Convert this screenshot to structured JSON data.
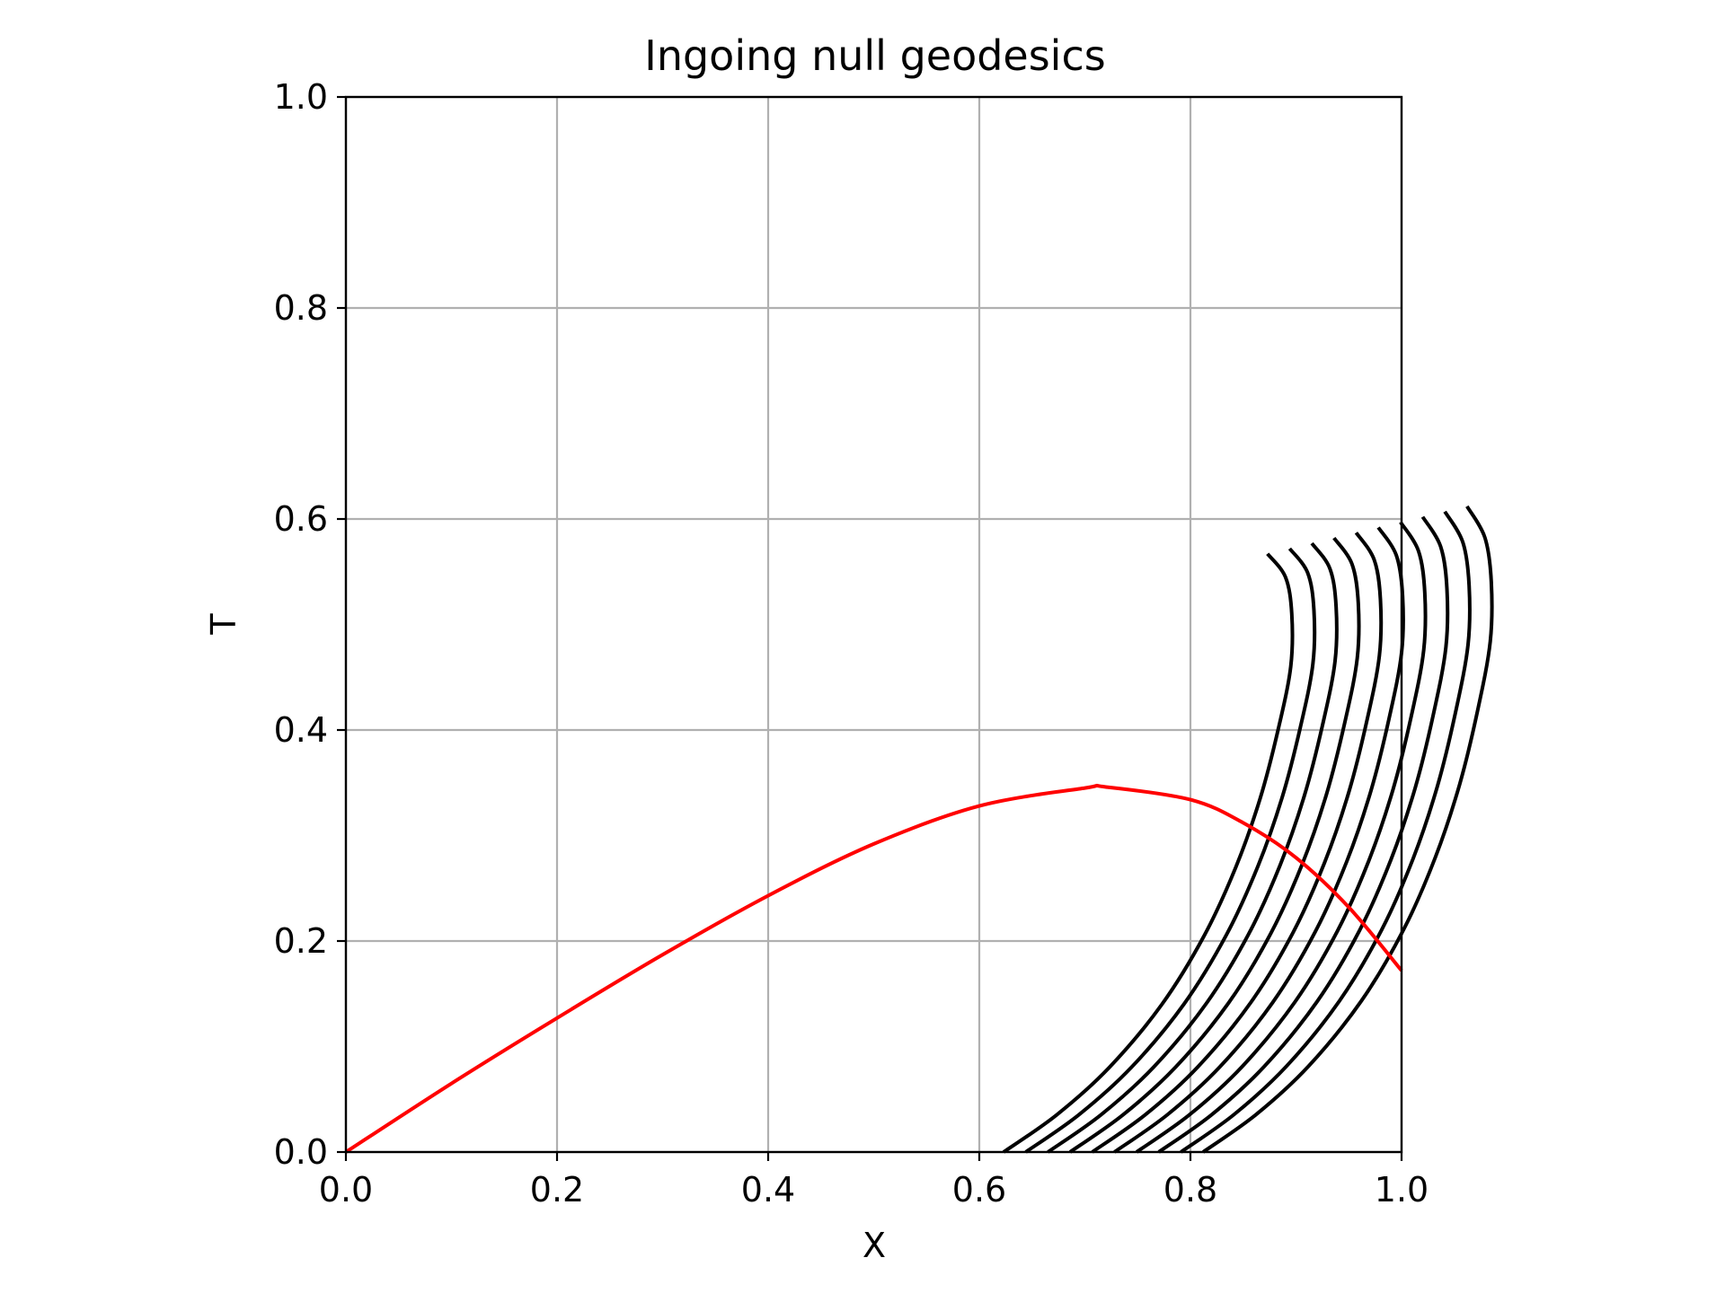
{
  "chart_data": {
    "type": "line",
    "title": "Ingoing null geodesics",
    "xlabel": "X",
    "ylabel": "T",
    "xlim": [
      0.0,
      1.0
    ],
    "ylim": [
      0.0,
      1.0
    ],
    "xticks": [
      "0.0",
      "0.2",
      "0.4",
      "0.6",
      "0.8",
      "1.0"
    ],
    "yticks": [
      "0.0",
      "0.2",
      "0.4",
      "0.6",
      "0.8",
      "1.0"
    ],
    "grid": true,
    "colors": {
      "geodesics": "#000000",
      "red_curve": "#ff0000",
      "grid": "#b0b0b0"
    },
    "geodesic_start_x": [
      0.623,
      0.644,
      0.665,
      0.686,
      0.707,
      0.728,
      0.749,
      0.77,
      0.791,
      0.812
    ],
    "geodesic_shape": [
      {
        "dx": 0.0,
        "t": 0.0
      },
      {
        "dx": 0.05,
        "t": 0.035
      },
      {
        "dx": 0.1,
        "t": 0.08
      },
      {
        "dx": 0.15,
        "t": 0.14
      },
      {
        "dx": 0.19,
        "t": 0.205
      },
      {
        "dx": 0.22,
        "t": 0.27
      },
      {
        "dx": 0.243,
        "t": 0.335
      },
      {
        "dx": 0.26,
        "t": 0.4
      },
      {
        "dx": 0.272,
        "t": 0.46
      },
      {
        "dx": 0.273,
        "t": 0.51
      },
      {
        "dx": 0.267,
        "t": 0.545
      },
      {
        "dx": 0.25,
        "t": 0.567
      }
    ],
    "geodesic_end_rise": 0.005,
    "red_curve": [
      {
        "x": 0.0,
        "y": 0.0
      },
      {
        "x": 0.1,
        "y": 0.065
      },
      {
        "x": 0.2,
        "y": 0.127
      },
      {
        "x": 0.3,
        "y": 0.187
      },
      {
        "x": 0.4,
        "y": 0.243
      },
      {
        "x": 0.5,
        "y": 0.292
      },
      {
        "x": 0.6,
        "y": 0.328
      },
      {
        "x": 0.7,
        "y": 0.345
      },
      {
        "x": 0.72,
        "y": 0.346
      },
      {
        "x": 0.8,
        "y": 0.334
      },
      {
        "x": 0.85,
        "y": 0.312
      },
      {
        "x": 0.9,
        "y": 0.279
      },
      {
        "x": 0.95,
        "y": 0.232
      },
      {
        "x": 1.0,
        "y": 0.172
      }
    ]
  }
}
